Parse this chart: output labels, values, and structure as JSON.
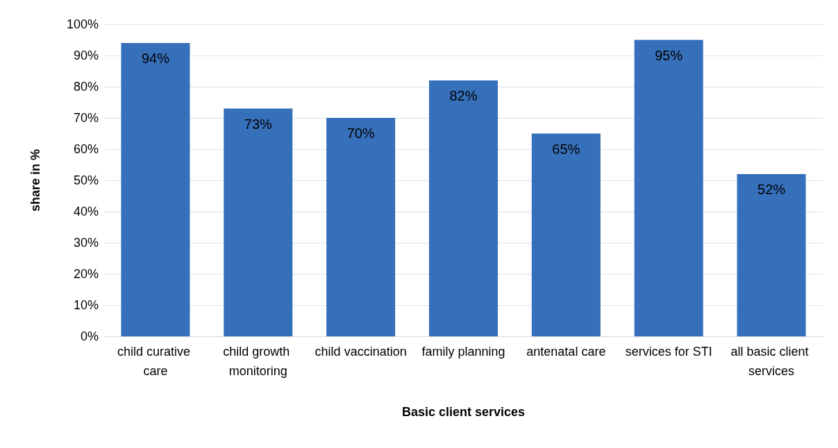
{
  "chart_data": {
    "type": "bar",
    "xlabel": "Basic client services",
    "ylabel": "share in %",
    "categories": [
      "child curative care",
      "child growth monitoring",
      "child vaccination",
      "family planning",
      "antenatal care",
      "services for STI",
      "all basic client services"
    ],
    "values": [
      94,
      73,
      70,
      82,
      65,
      95,
      52
    ],
    "value_labels": [
      "94%",
      "73%",
      "70%",
      "82%",
      "65%",
      "95%",
      "52%"
    ],
    "color": "#3670bb",
    "ylim": [
      0,
      100
    ],
    "yticks": [
      {
        "value": 0,
        "label": "0%"
      },
      {
        "value": 10,
        "label": "10%"
      },
      {
        "value": 20,
        "label": "20%"
      },
      {
        "value": 30,
        "label": "30%"
      },
      {
        "value": 40,
        "label": "40%"
      },
      {
        "value": 50,
        "label": "50%"
      },
      {
        "value": 60,
        "label": "60%"
      },
      {
        "value": 70,
        "label": "70%"
      },
      {
        "value": 80,
        "label": "80%"
      },
      {
        "value": 90,
        "label": "90%"
      },
      {
        "value": 100,
        "label": "100%"
      }
    ],
    "grid": "y"
  }
}
